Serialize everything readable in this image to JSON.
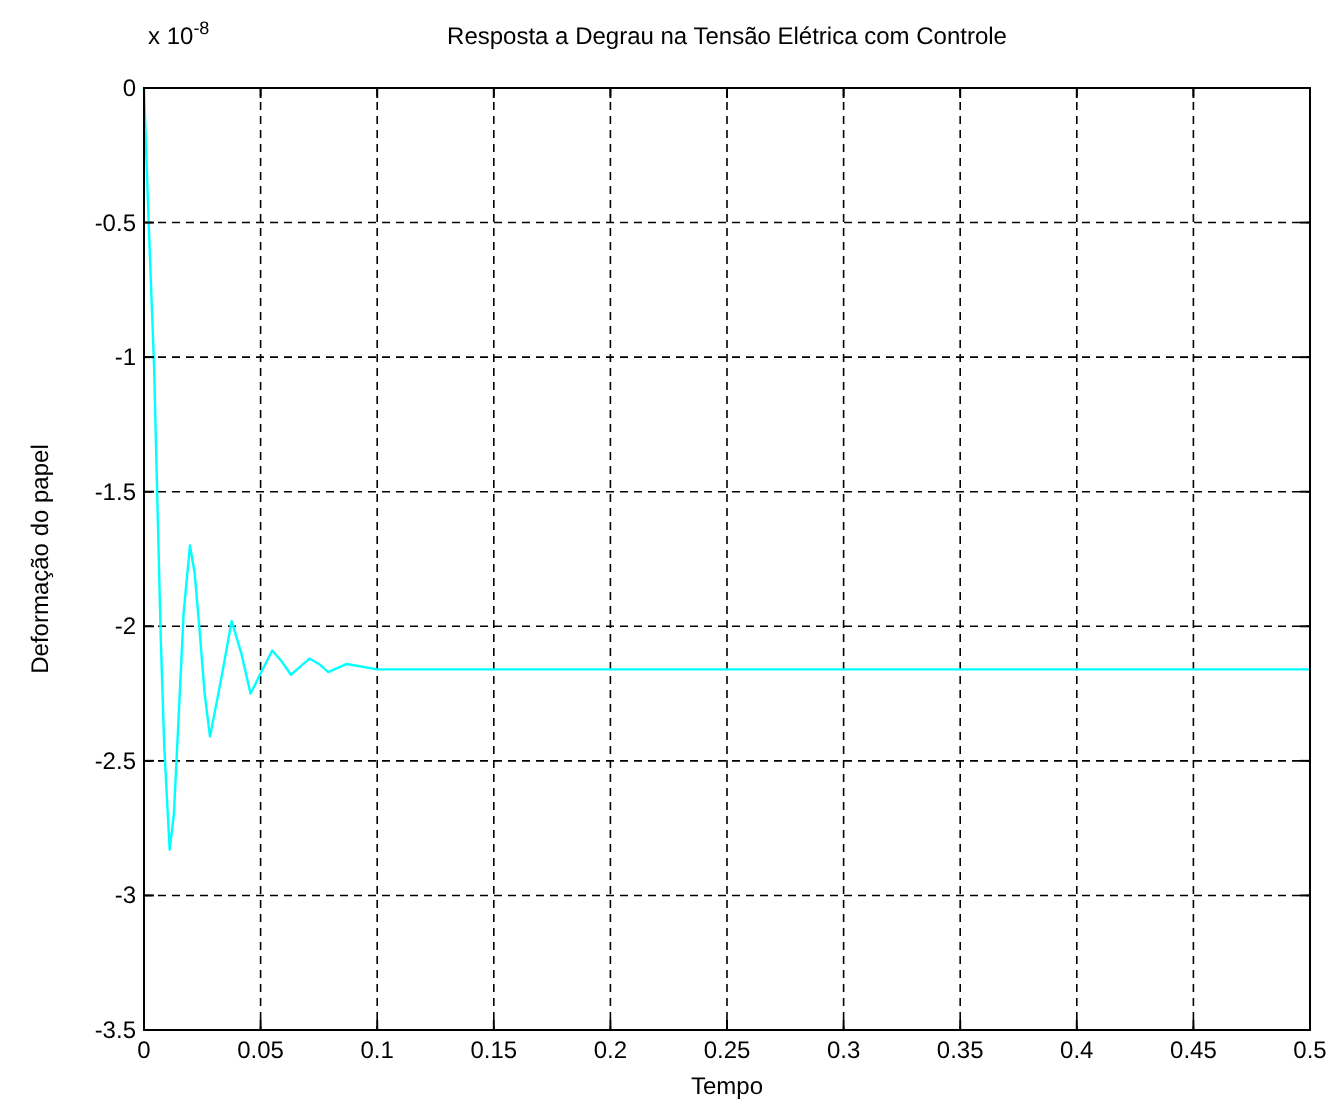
{
  "chart_data": {
    "type": "line",
    "title": "Resposta a Degrau na Tensão Elétrica com Controle",
    "xlabel": "Tempo",
    "ylabel": "Deformação do papel",
    "annotations": [
      "x 10$^{-8}$"
    ],
    "series": [
      {
        "color": "#00ffff",
        "x": [
          0,
          0.002,
          0.0043,
          0.0072,
          0.0087,
          0.011,
          0.0128,
          0.0145,
          0.017,
          0.0197,
          0.0217,
          0.0237,
          0.026,
          0.0283,
          0.033,
          0.0376,
          0.0417,
          0.0457,
          0.0503,
          0.055,
          0.059,
          0.063,
          0.067,
          0.071,
          0.075,
          0.079,
          0.087,
          0.1,
          0.12,
          0.15,
          0.2,
          0.3,
          0.4,
          0.5
        ],
        "values": [
          0,
          -0.5,
          -1.03,
          -2.05,
          -2.45,
          -2.83,
          -2.7,
          -2.4,
          -1.95,
          -1.7,
          -1.8,
          -2.0,
          -2.25,
          -2.41,
          -2.2,
          -1.98,
          -2.1,
          -2.25,
          -2.17,
          -2.09,
          -2.13,
          -2.18,
          -2.15,
          -2.12,
          -2.14,
          -2.17,
          -2.14,
          -2.16,
          -2.16,
          -2.16,
          -2.16,
          -2.16,
          -2.16,
          -2.16
        ]
      }
    ],
    "xlim": [
      0,
      0.5
    ],
    "ylim": [
      -3.5,
      0
    ],
    "xticks": [
      0,
      0.05,
      0.1,
      0.15,
      0.2,
      0.25,
      0.3,
      0.35,
      0.4,
      0.45,
      0.5
    ],
    "yticks": [
      -3.5,
      -3,
      -2.5,
      -2,
      -1.5,
      -1,
      -0.5,
      0
    ],
    "grid": true,
    "line_style": "solid",
    "marker": "none"
  }
}
